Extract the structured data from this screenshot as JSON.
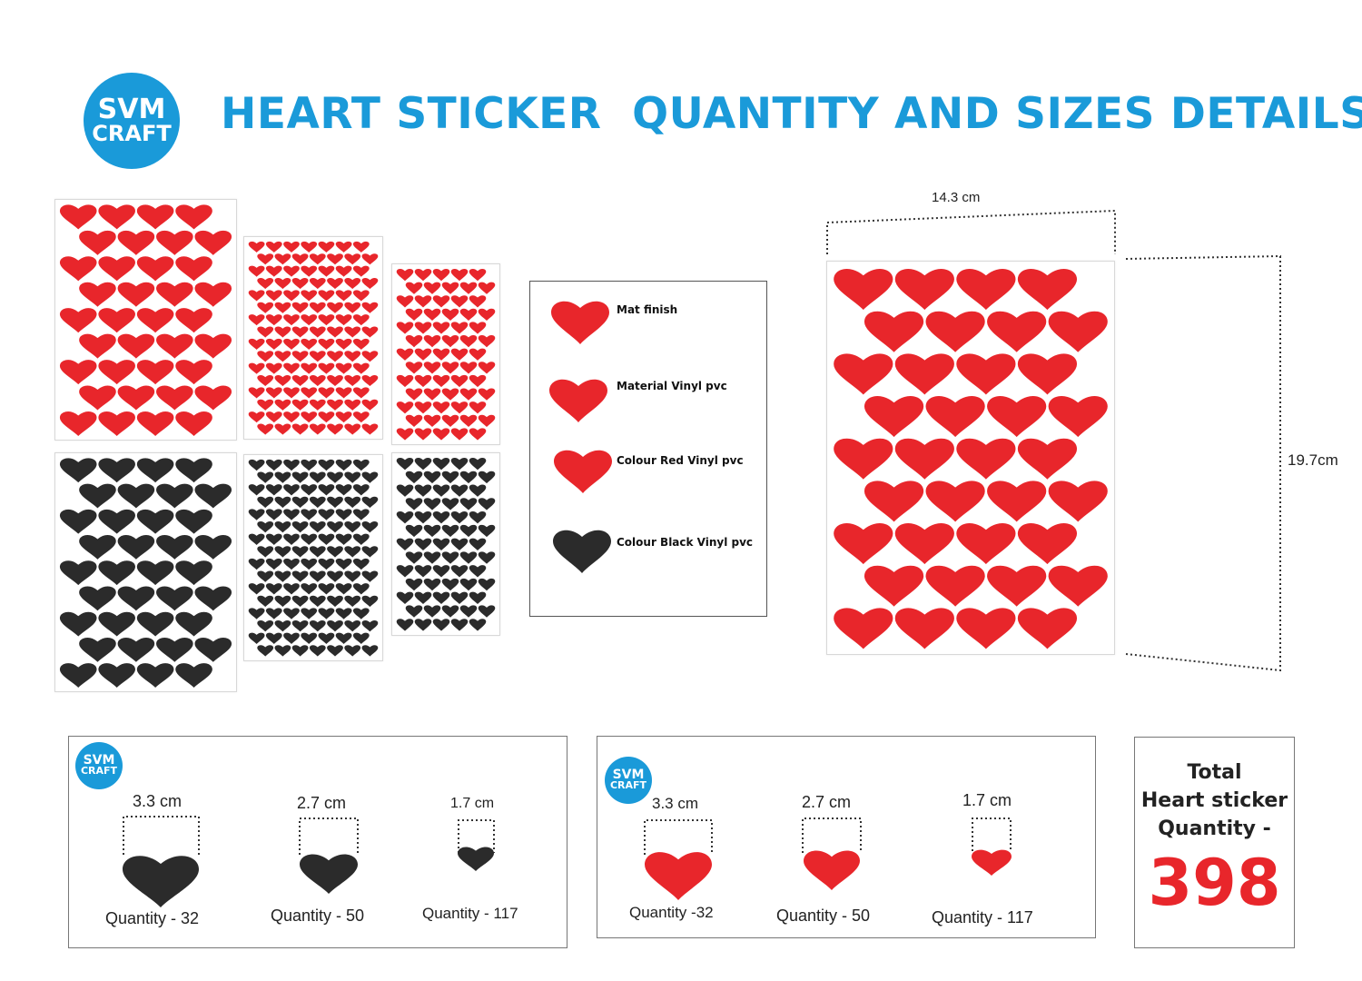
{
  "brand": {
    "logo_line1": "SVM",
    "logo_line2": "CRAFT",
    "logo_color": "#1a9ad9"
  },
  "title": "HEART STICKER  QUANTITY AND SIZES DETAILS",
  "colors": {
    "red": "#e8262b",
    "black": "#2b2b2b",
    "accent": "#1a9ad9"
  },
  "legend": {
    "items": [
      {
        "label": "Mat finish",
        "color": "#e8262b",
        "icon": "heart-icon"
      },
      {
        "label": "Material Vinyl pvc",
        "color": "#e8262b",
        "icon": "heart-icon"
      },
      {
        "label": "Colour Red Vinyl pvc",
        "color": "#e8262b",
        "icon": "heart-icon"
      },
      {
        "label": "Colour Black Vinyl pvc",
        "color": "#2b2b2b",
        "icon": "heart-icon"
      }
    ]
  },
  "sheet_dimensions": {
    "width_label": "14.3 cm",
    "height_label": "19.7cm"
  },
  "black_panel": {
    "items": [
      {
        "size": "3.3 cm",
        "quantity": "Quantity - 32"
      },
      {
        "size": "2.7 cm",
        "quantity": "Quantity - 50"
      },
      {
        "size": "1.7 cm",
        "quantity": "Quantity - 117"
      }
    ]
  },
  "red_panel": {
    "items": [
      {
        "size": "3.3 cm",
        "quantity": "Quantity -32"
      },
      {
        "size": "2.7 cm",
        "quantity": "Quantity - 50"
      },
      {
        "size": "1.7 cm",
        "quantity": "Quantity - 117"
      }
    ]
  },
  "total": {
    "line1": "Total",
    "line2": "Heart sticker",
    "line3": "Quantity -",
    "value": "398"
  }
}
